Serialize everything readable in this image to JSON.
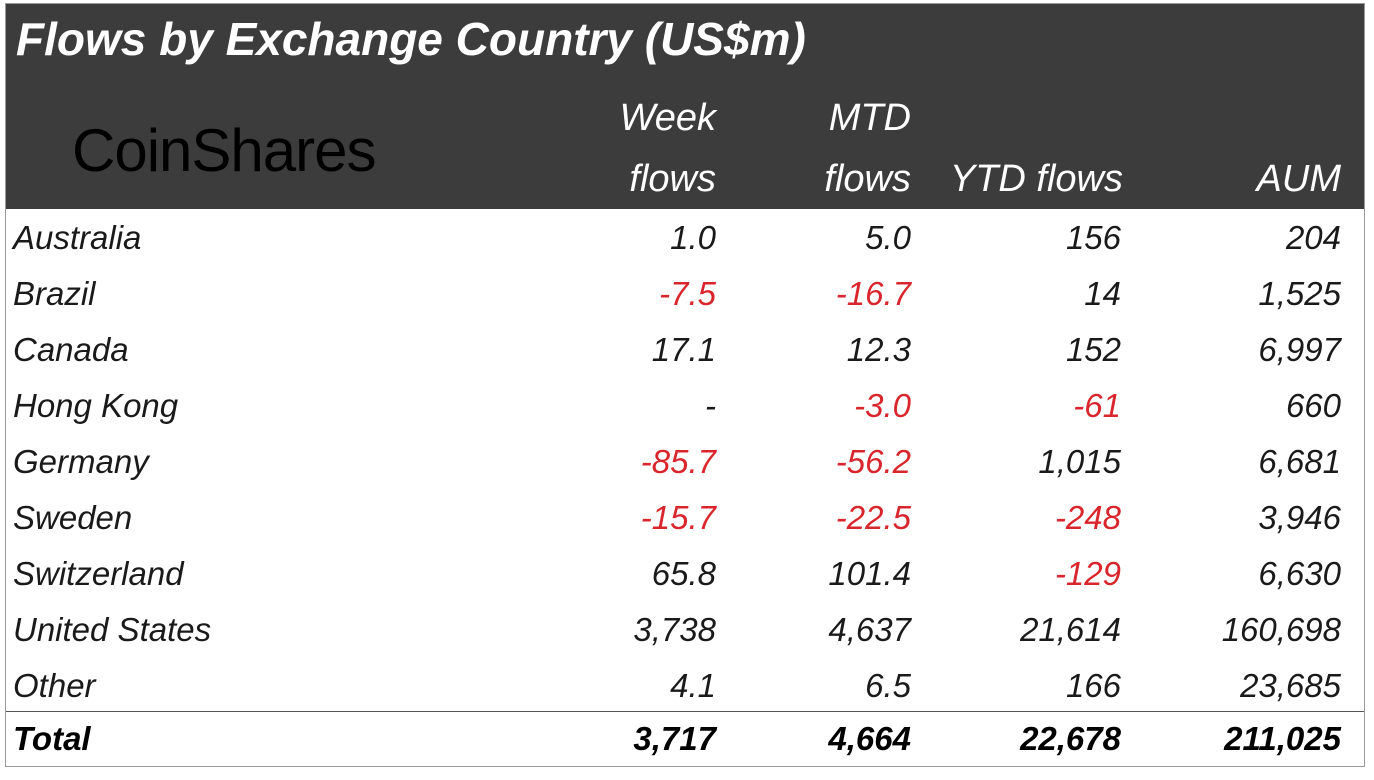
{
  "chart_data": {
    "type": "table",
    "title": "Flows by Exchange Country (US$m)",
    "brand": "CoinShares",
    "columns": {
      "week": [
        "Week",
        "flows"
      ],
      "mtd": [
        "MTD",
        "flows"
      ],
      "ytd": [
        "",
        "YTD flows"
      ],
      "aum": [
        "",
        "AUM"
      ]
    },
    "rows": [
      {
        "country": "Australia",
        "week": "1.0",
        "mtd": "5.0",
        "ytd": "156",
        "aum": "204"
      },
      {
        "country": "Brazil",
        "week": "-7.5",
        "mtd": "-16.7",
        "ytd": "14",
        "aum": "1,525"
      },
      {
        "country": "Canada",
        "week": "17.1",
        "mtd": "12.3",
        "ytd": "152",
        "aum": "6,997"
      },
      {
        "country": "Hong Kong",
        "week": "-",
        "mtd": "-3.0",
        "ytd": "-61",
        "aum": "660"
      },
      {
        "country": "Germany",
        "week": "-85.7",
        "mtd": "-56.2",
        "ytd": "1,015",
        "aum": "6,681"
      },
      {
        "country": "Sweden",
        "week": "-15.7",
        "mtd": "-22.5",
        "ytd": "-248",
        "aum": "3,946"
      },
      {
        "country": "Switzerland",
        "week": "65.8",
        "mtd": "101.4",
        "ytd": "-129",
        "aum": "6,630"
      },
      {
        "country": "United States",
        "week": "3,738",
        "mtd": "4,637",
        "ytd": "21,614",
        "aum": "160,698"
      },
      {
        "country": "Other",
        "week": "4.1",
        "mtd": "6.5",
        "ytd": "166",
        "aum": "23,685"
      }
    ],
    "total": {
      "label": "Total",
      "week": "3,717",
      "mtd": "4,664",
      "ytd": "22,678",
      "aum": "211,025"
    },
    "colors": {
      "header_bg": "#3c3c3c",
      "header_text": "#ffffff",
      "negative": "#d9262c",
      "text": "#1a1a1a"
    }
  }
}
